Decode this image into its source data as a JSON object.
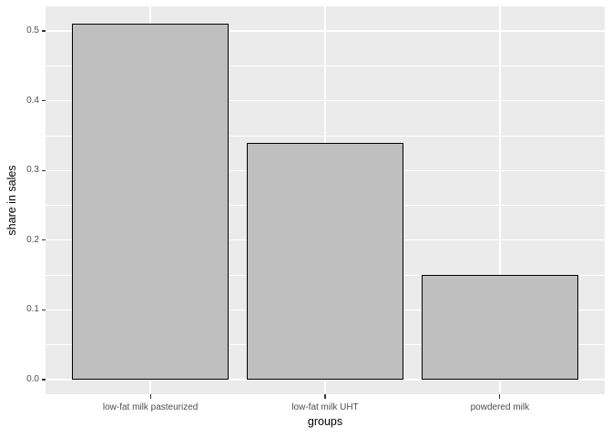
{
  "figure": {
    "background": "#FFFFFF",
    "panel_background": "#EBEBEB",
    "gridline_color": "#FFFFFF",
    "bar_fill": "#BFBFBF",
    "bar_stroke": "#000000",
    "tick_mark_color": "#333333",
    "tick_label_color": "#4E4E4E",
    "axis_title_color": "#000000",
    "style": "ggplot2 theme_grey"
  },
  "chart_data": {
    "type": "bar",
    "title": "",
    "xlabel": "groups",
    "ylabel": "share in sales",
    "categories": [
      "low-fat milk pasteurized",
      "low-fat milk UHT",
      "powdered milk"
    ],
    "values": [
      0.51,
      0.34,
      0.15
    ],
    "y_ticks": [
      0.0,
      0.1,
      0.2,
      0.3,
      0.4,
      0.5
    ],
    "y_tick_labels": [
      "0.0",
      "0.1",
      "0.2",
      "0.3",
      "0.4",
      "0.5"
    ],
    "ylim": [
      -0.02,
      0.535
    ],
    "bar_width_fraction": 0.9,
    "grid": "major and minor horizontal white lines, vertical major at each category",
    "legend": "none"
  }
}
